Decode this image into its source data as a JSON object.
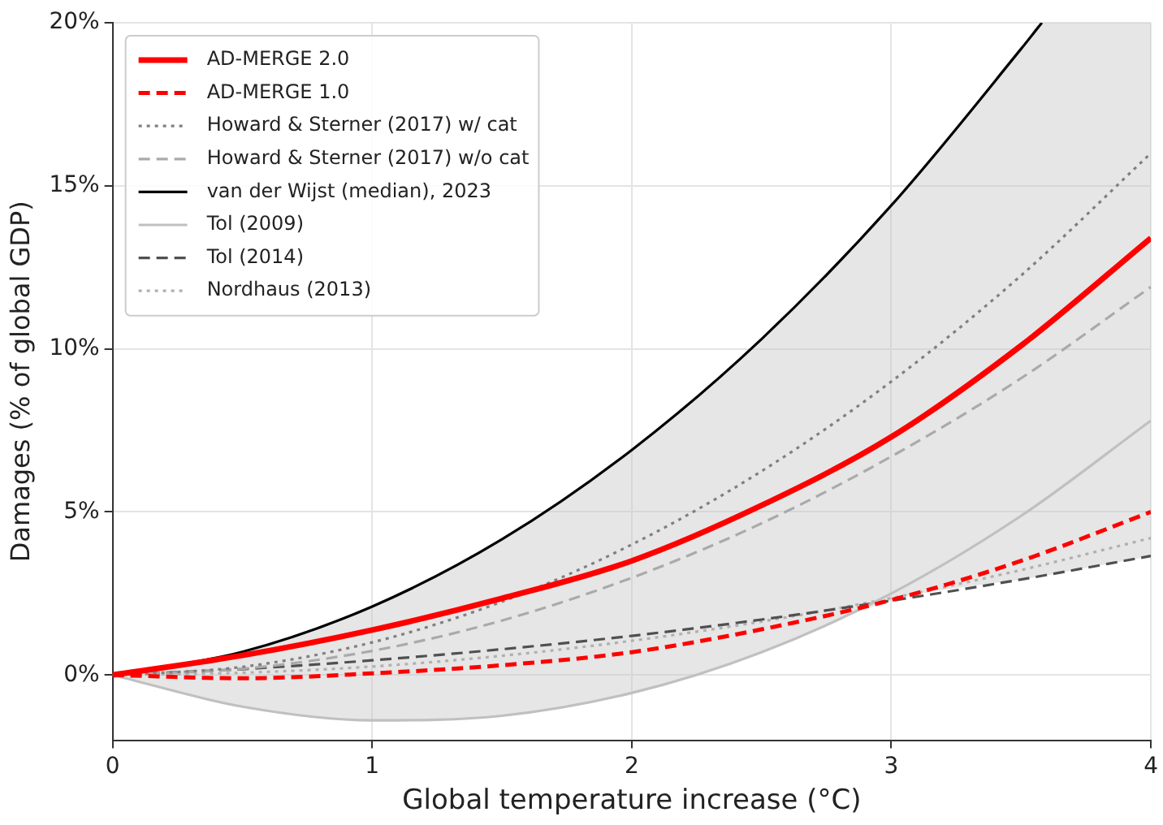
{
  "chart_data": {
    "type": "line",
    "xlabel": "Global temperature increase (°C)",
    "ylabel": "Damages (% of global GDP)",
    "x": [
      0,
      0.5,
      1,
      1.5,
      2,
      2.5,
      3,
      3.5,
      4
    ],
    "xlim": [
      0,
      4
    ],
    "xticks": [
      0,
      1,
      2,
      3,
      4
    ],
    "ylim": [
      -2,
      20
    ],
    "yticks": [
      {
        "value": 0,
        "label": "0%"
      },
      {
        "value": 5,
        "label": "5%"
      },
      {
        "value": 10,
        "label": "10%"
      },
      {
        "value": 15,
        "label": "15%"
      },
      {
        "value": 20,
        "label": "20%"
      }
    ],
    "grid": true,
    "legend": "top left",
    "marker": "none",
    "series": [
      {
        "name": "AD-MERGE 2.0",
        "color": "#ff0000",
        "line_style": "solid",
        "values": [
          0,
          0.6,
          1.38,
          2.35,
          3.5,
          5.2,
          7.3,
          10.1,
          13.4
        ]
      },
      {
        "name": "AD-MERGE 1.0",
        "color": "#ff0000",
        "line_style": "dashed",
        "values": [
          0,
          -0.1,
          0.05,
          0.3,
          0.7,
          1.4,
          2.3,
          3.5,
          5.0
        ]
      },
      {
        "name": "Howard & Sterner (2017) w/ cat",
        "color": "#808080",
        "line_style": "dotted",
        "values": [
          0,
          0.25,
          1,
          2.25,
          4,
          6.25,
          9,
          12.25,
          16
        ]
      },
      {
        "name": "Howard & Sterner (2017) w/o cat",
        "color": "#aaaaaa",
        "line_style": "dashed",
        "values": [
          0,
          0.19,
          0.74,
          1.67,
          2.98,
          4.65,
          6.7,
          9.1,
          11.9
        ]
      },
      {
        "name": "van der Wijst (median), 2023",
        "color": "#000000",
        "line_style": "solid",
        "x": [
          0,
          0.5,
          1,
          1.5,
          2,
          2.5,
          3,
          3.5,
          3.58,
          3.75,
          4
        ],
        "values": [
          0,
          0.71,
          2.1,
          4.16,
          6.9,
          10.3,
          14.4,
          19.2,
          20,
          null,
          null
        ],
        "lower": [
          0,
          -0.97,
          -1.39,
          -1.25,
          -0.55,
          0.7,
          2.28,
          2.93,
          3.03,
          3.28,
          3.65
        ],
        "upper": [
          0,
          0.71,
          2.1,
          4.16,
          6.9,
          10.3,
          14.4,
          19.2,
          20,
          20,
          20
        ]
      },
      {
        "name": "Tol (2009)",
        "color": "#c0c0c0",
        "line_style": "solid",
        "values": [
          0,
          -0.97,
          -1.39,
          -1.25,
          -0.55,
          0.7,
          2.5,
          4.88,
          7.8
        ]
      },
      {
        "name": "Tol (2014)",
        "color": "#505050",
        "line_style": "dashed",
        "values": [
          0,
          0.18,
          0.45,
          0.79,
          1.2,
          1.7,
          2.28,
          2.93,
          3.65
        ]
      },
      {
        "name": "Nordhaus (2013)",
        "color": "#b0b0b0",
        "line_style": "dotted",
        "values": [
          0,
          0.07,
          0.26,
          0.59,
          1.05,
          1.64,
          2.36,
          3.22,
          4.2
        ]
      }
    ]
  }
}
